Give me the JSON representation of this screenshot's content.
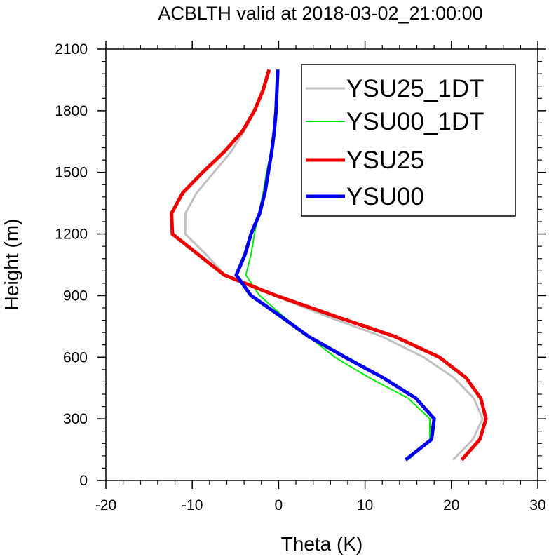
{
  "chart_data": {
    "type": "line",
    "title": "ACBLTH valid at 2018-03-02_21:00:00",
    "xlabel": "Theta (K)",
    "ylabel": "Height (m)",
    "xlim": [
      -20,
      30
    ],
    "ylim": [
      0,
      2100
    ],
    "xticks": [
      -20,
      -10,
      0,
      10,
      20,
      30
    ],
    "yticks": [
      0,
      300,
      600,
      900,
      1200,
      1500,
      1800,
      2100
    ],
    "grid": false,
    "legend_position": "top-right",
    "series": [
      {
        "name": "YSU25_1DT",
        "color": "#c0c0c0",
        "points": [
          [
            20.2,
            100
          ],
          [
            22.5,
            200
          ],
          [
            23.6,
            300
          ],
          [
            22.6,
            400
          ],
          [
            20.3,
            500
          ],
          [
            16.8,
            600
          ],
          [
            12.0,
            700
          ],
          [
            5.5,
            800
          ],
          [
            -0.5,
            900
          ],
          [
            -6.2,
            1000
          ],
          [
            -8.4,
            1100
          ],
          [
            -10.8,
            1200
          ],
          [
            -10.8,
            1300
          ],
          [
            -9.5,
            1400
          ],
          [
            -7.5,
            1500
          ],
          [
            -5.5,
            1600
          ],
          [
            -4.0,
            1700
          ],
          [
            -2.7,
            1800
          ],
          [
            -1.9,
            1900
          ],
          [
            -1.2,
            2000
          ]
        ]
      },
      {
        "name": "YSU00_1DT",
        "color": "#00ee00",
        "points": [
          [
            15.0,
            100
          ],
          [
            17.5,
            200
          ],
          [
            17.5,
            300
          ],
          [
            15.0,
            400
          ],
          [
            10.5,
            500
          ],
          [
            6.5,
            600
          ],
          [
            3.5,
            700
          ],
          [
            0.5,
            800
          ],
          [
            -2.2,
            900
          ],
          [
            -3.8,
            1000
          ],
          [
            -3.2,
            1100
          ],
          [
            -2.8,
            1200
          ],
          [
            -2.3,
            1300
          ],
          [
            -1.8,
            1400
          ],
          [
            -1.4,
            1500
          ],
          [
            -0.9,
            1600
          ],
          [
            -0.6,
            1700
          ],
          [
            -0.4,
            1800
          ],
          [
            -0.3,
            1900
          ],
          [
            -0.2,
            2000
          ]
        ]
      },
      {
        "name": "YSU25",
        "color": "#ee0000",
        "points": [
          [
            21.2,
            100
          ],
          [
            23.3,
            200
          ],
          [
            24.0,
            300
          ],
          [
            23.4,
            400
          ],
          [
            21.7,
            500
          ],
          [
            18.6,
            600
          ],
          [
            13.5,
            700
          ],
          [
            6.5,
            800
          ],
          [
            -0.3,
            900
          ],
          [
            -6.3,
            1000
          ],
          [
            -9.3,
            1100
          ],
          [
            -12.3,
            1200
          ],
          [
            -12.4,
            1300
          ],
          [
            -11.1,
            1400
          ],
          [
            -8.8,
            1500
          ],
          [
            -6.3,
            1600
          ],
          [
            -4.2,
            1700
          ],
          [
            -2.8,
            1800
          ],
          [
            -1.8,
            1900
          ],
          [
            -1.1,
            2000
          ]
        ]
      },
      {
        "name": "YSU00",
        "color": "#0000ee",
        "points": [
          [
            14.7,
            100
          ],
          [
            17.7,
            200
          ],
          [
            18.0,
            300
          ],
          [
            15.9,
            400
          ],
          [
            12.1,
            500
          ],
          [
            7.7,
            600
          ],
          [
            3.5,
            700
          ],
          [
            0.2,
            800
          ],
          [
            -3.2,
            900
          ],
          [
            -4.9,
            1000
          ],
          [
            -3.9,
            1100
          ],
          [
            -3.2,
            1200
          ],
          [
            -2.2,
            1300
          ],
          [
            -1.6,
            1400
          ],
          [
            -1.2,
            1500
          ],
          [
            -0.8,
            1600
          ],
          [
            -0.5,
            1700
          ],
          [
            -0.3,
            1800
          ],
          [
            -0.2,
            1900
          ],
          [
            -0.1,
            2000
          ]
        ]
      }
    ]
  }
}
